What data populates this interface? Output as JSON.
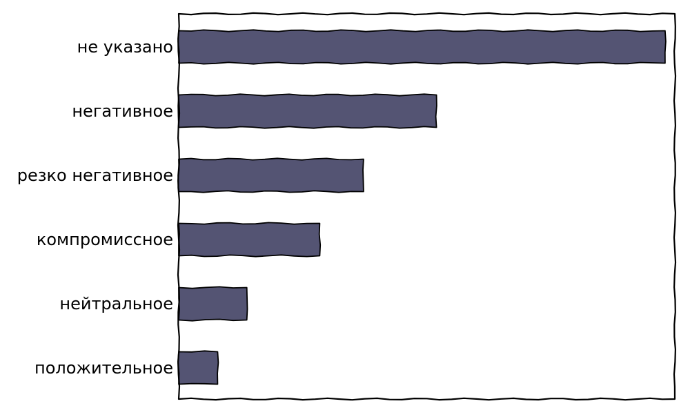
{
  "chart_data": {
    "type": "bar",
    "orientation": "horizontal",
    "categories": [
      "не указано",
      "негативное",
      "резко негативное",
      "компромиссное",
      "нейтральное",
      "положительное"
    ],
    "values": [
      100,
      53,
      38,
      29,
      14,
      8
    ],
    "title": "",
    "xlabel": "",
    "ylabel": "",
    "xlim": [
      0,
      102
    ],
    "grid": false,
    "legend": "none",
    "colors": {
      "bar_fill": "#545473",
      "bar_stroke": "#000000",
      "frame_stroke": "#000000"
    }
  }
}
